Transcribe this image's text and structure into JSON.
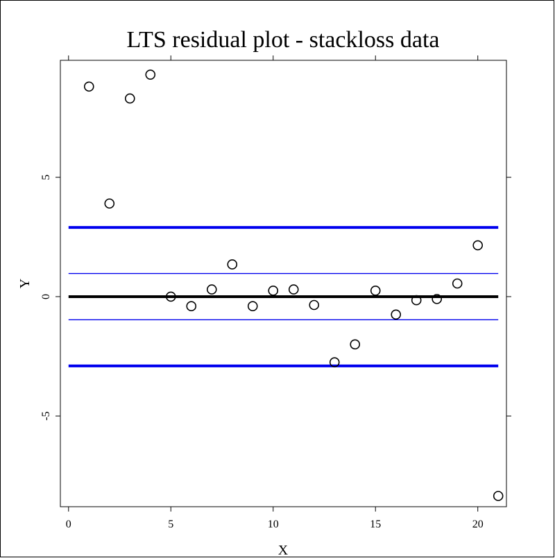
{
  "chart_data": {
    "type": "scatter",
    "title": "LTS residual plot - stackloss data",
    "xlabel": "X",
    "ylabel": "Y",
    "xlim": [
      -0.4,
      21.4
    ],
    "ylim": [
      -8.8,
      9.9
    ],
    "xticks": [
      0,
      5,
      10,
      15,
      20
    ],
    "yticks": [
      -5,
      0,
      5
    ],
    "grid": false,
    "points": {
      "x": [
        1,
        2,
        3,
        4,
        5,
        6,
        7,
        8,
        9,
        10,
        11,
        12,
        13,
        14,
        15,
        16,
        17,
        18,
        19,
        20,
        21
      ],
      "y": [
        8.8,
        3.9,
        8.3,
        9.3,
        0.0,
        -0.4,
        0.3,
        1.35,
        -0.4,
        0.25,
        0.3,
        -0.35,
        -2.75,
        -2.0,
        0.25,
        -0.75,
        -0.15,
        -0.1,
        0.55,
        2.15,
        -8.35
      ]
    },
    "reference_lines": [
      {
        "y": 2.9,
        "color": "#0000ee",
        "style": "thick"
      },
      {
        "y": 0.97,
        "color": "#0000ee",
        "style": "thin"
      },
      {
        "y": 0,
        "color": "#000000",
        "style": "thick"
      },
      {
        "y": -0.97,
        "color": "#0000ee",
        "style": "thin"
      },
      {
        "y": -2.9,
        "color": "#0000ee",
        "style": "thick"
      }
    ],
    "reference_x_range": [
      0,
      21
    ]
  }
}
